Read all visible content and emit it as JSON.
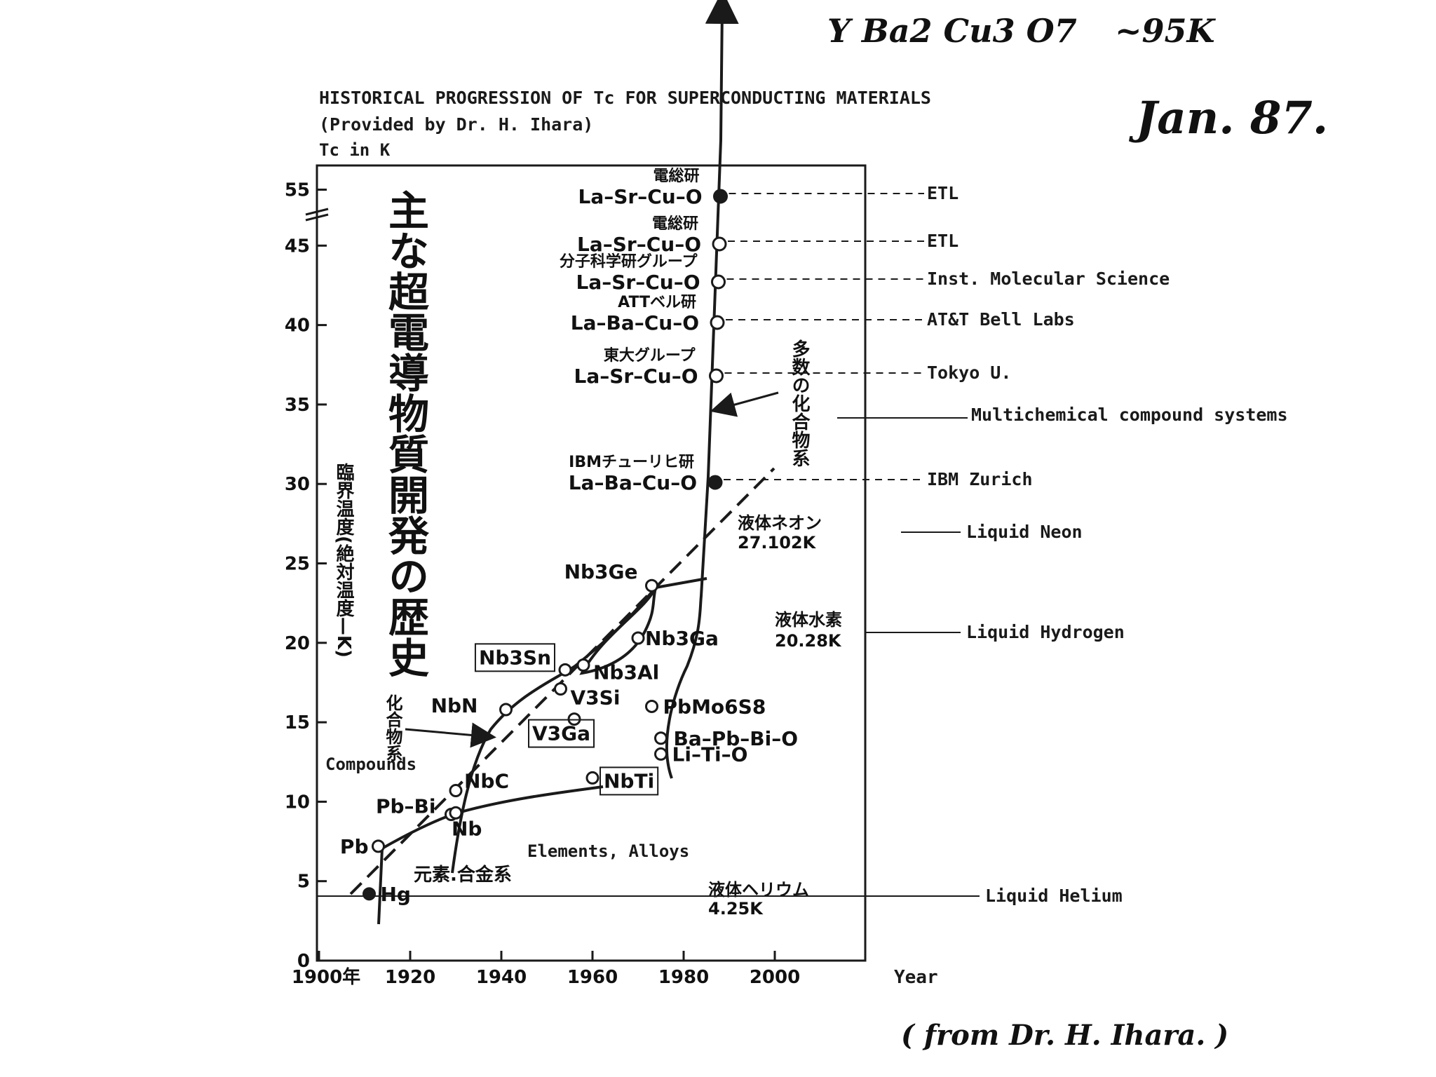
{
  "handwritten": {
    "formula": "Y Ba2 Cu3 O7",
    "formula_tc": "~95K",
    "date": "Jan. 87.",
    "footer": "( from Dr. H. Ihara. )"
  },
  "header": {
    "title": "HISTORICAL PROGRESSION OF Tc FOR SUPERCONDUCTING MATERIALS",
    "subtitle": "(Provided by Dr. H. Ihara)",
    "ylabel": "Tc in K",
    "xlabel": "Year"
  },
  "jp": {
    "title": "主な超電導物質開発の歴史",
    "yaxis": "臨界温度(絶対温度—K)",
    "compounds": "化合物系",
    "multi": "多数の化合物系",
    "elements": "元素.合金系"
  },
  "categories": {
    "compounds": "Compounds",
    "elements": "Elements, Alloys"
  },
  "chart_data": {
    "type": "scatter",
    "title": "HISTORICAL PROGRESSION OF Tc FOR SUPERCONDUCTING MATERIALS",
    "xlabel": "Year",
    "ylabel": "Tc in K",
    "xlim": [
      1900,
      2020
    ],
    "ylim": [
      0,
      55
    ],
    "x_ticks": [
      "1900年",
      "1920",
      "1940",
      "1960",
      "1980",
      "2000"
    ],
    "y_ticks": [
      "0",
      "5",
      "10",
      "15",
      "20",
      "25",
      "30",
      "35",
      "40",
      "45",
      "55"
    ],
    "points": [
      {
        "label": "Hg",
        "year": 1911,
        "tc": 4.2
      },
      {
        "label": "Pb",
        "year": 1913,
        "tc": 7.2
      },
      {
        "label": "Pb–Bi",
        "year": 1929,
        "tc": 9.2
      },
      {
        "label": "Nb",
        "year": 1930,
        "tc": 9.3
      },
      {
        "label": "NbC",
        "year": 1930,
        "tc": 10.7
      },
      {
        "label": "NbN",
        "year": 1941,
        "tc": 15.8
      },
      {
        "label": "V3Ga",
        "year": 1956,
        "tc": 15.2
      },
      {
        "label": "V3Si",
        "year": 1953,
        "tc": 17.1
      },
      {
        "label": "Nb3Sn",
        "year": 1954,
        "tc": 18.3
      },
      {
        "label": "Nb3Al",
        "year": 1958,
        "tc": 18.6
      },
      {
        "label": "NbTi",
        "year": 1960,
        "tc": 11.5
      },
      {
        "label": "Nb3Ga",
        "year": 1970,
        "tc": 20.3
      },
      {
        "label": "Nb3Ge",
        "year": 1973,
        "tc": 23.6
      },
      {
        "label": "PbMo6S8",
        "year": 1973,
        "tc": 16.0
      },
      {
        "label": "Ba–Pb–Bi–O",
        "year": 1975,
        "tc": 14.0
      },
      {
        "label": "Li–Ti–O",
        "year": 1975,
        "tc": 13.0
      },
      {
        "label": "La–Ba–Cu–O",
        "year": 1986,
        "tc": 30.5,
        "lab_jp": "IBMチューリヒ研",
        "lab_en": "IBM Zurich"
      },
      {
        "label": "La–Sr–Cu–O",
        "year": 1986.5,
        "tc": 37.0,
        "lab_jp": "東大グループ",
        "lab_en": "Tokyo U."
      },
      {
        "label": "La–Ba–Cu–O",
        "year": 1986.6,
        "tc": 40.3,
        "lab_jp": "ATTベル研",
        "lab_en": "AT&T Bell Labs"
      },
      {
        "label": "La–Sr–Cu–O",
        "year": 1986.6,
        "tc": 43.0,
        "lab_jp": "分子科学研グループ",
        "lab_en": "Inst. Molecular Science"
      },
      {
        "label": "La–Sr–Cu–O",
        "year": 1986.7,
        "tc": 45.3,
        "lab_jp": "電総研",
        "lab_en": "ETL"
      },
      {
        "label": "La–Sr–Cu–O",
        "year": 1986.8,
        "tc": 55.0,
        "lab_jp": "電総研",
        "lab_en": "ETL"
      }
    ],
    "reference_lines": [
      {
        "jp": "液体ヘリウム",
        "value_label": "4.25K",
        "en": "Liquid Helium",
        "tc": 4.25
      },
      {
        "jp": "液体水素",
        "value_label": "20.28K",
        "en": "Liquid Hydrogen",
        "tc": 20.28
      },
      {
        "jp": "液体ネオン",
        "value_label": "27.102K",
        "en": "Liquid Neon",
        "tc": 27.102
      }
    ],
    "annotations": [
      "Multichemical compound systems"
    ]
  },
  "colors": {
    "ink": "#1a1a1a",
    "paper": "#ffffff"
  }
}
